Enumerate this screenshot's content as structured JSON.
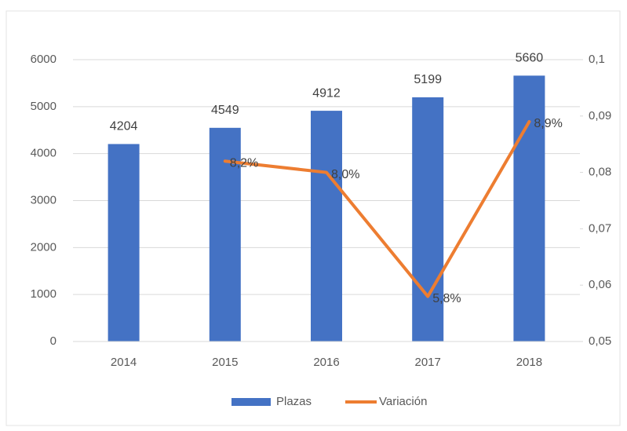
{
  "chart_data": {
    "type": "combo",
    "categories": [
      "2014",
      "2015",
      "2016",
      "2017",
      "2018"
    ],
    "series": [
      {
        "name": "Plazas",
        "type": "bar",
        "color": "#4472c4",
        "values": [
          4204,
          4549,
          4912,
          5199,
          5660
        ]
      },
      {
        "name": "Variación",
        "type": "line",
        "axis": "y2",
        "color": "#ed7d31",
        "values": [
          null,
          0.082,
          0.08,
          0.058,
          0.089
        ],
        "value_labels": [
          null,
          "8,2%",
          "8,0%",
          "5,8%",
          "8,9%"
        ]
      }
    ],
    "ylim": [
      0,
      6000
    ],
    "yticks": [
      0,
      1000,
      2000,
      3000,
      4000,
      5000,
      6000
    ],
    "y2lim": [
      0.05,
      0.1
    ],
    "y2ticks": [
      {
        "value": 0.05,
        "label": "0,05"
      },
      {
        "value": 0.06,
        "label": "0,06"
      },
      {
        "value": 0.07,
        "label": "0,07"
      },
      {
        "value": 0.08,
        "label": "0,08"
      },
      {
        "value": 0.09,
        "label": "0,09"
      },
      {
        "value": 0.1,
        "label": "0,1"
      }
    ],
    "grid": true,
    "legend": "bottom"
  }
}
